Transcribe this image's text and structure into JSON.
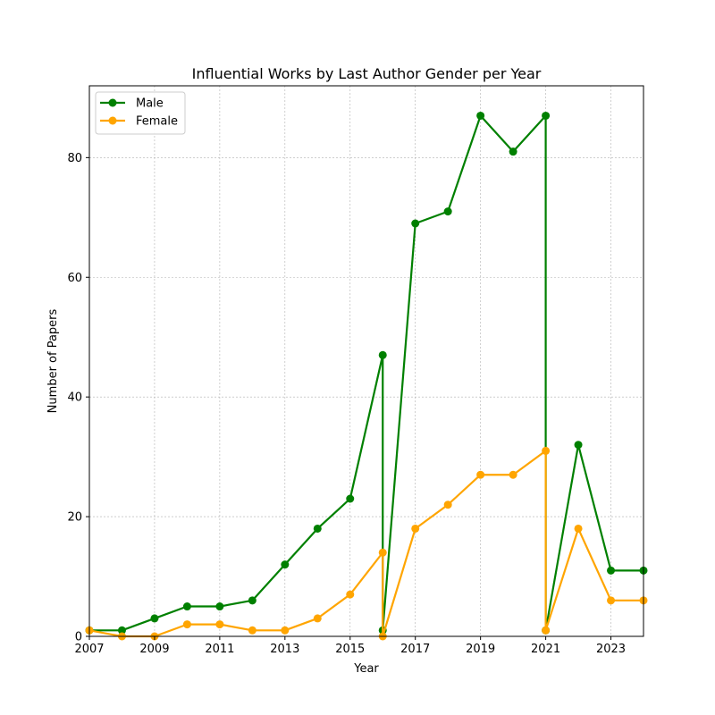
{
  "chart_data": {
    "type": "line",
    "title": "Influential Works by Last Author Gender per Year",
    "xlabel": "Year",
    "ylabel": "Number of Papers",
    "xlim": [
      2007,
      2024
    ],
    "ylim": [
      0,
      92
    ],
    "x_ticks": [
      2007,
      2009,
      2011,
      2013,
      2015,
      2017,
      2019,
      2021,
      2023
    ],
    "y_ticks": [
      0,
      20,
      40,
      60,
      80
    ],
    "grid": true,
    "legend_position": "top-left",
    "series": [
      {
        "name": "Male",
        "color": "#008000",
        "points": [
          [
            2007,
            1
          ],
          [
            2008,
            1
          ],
          [
            2009,
            3
          ],
          [
            2010,
            5
          ],
          [
            2011,
            5
          ],
          [
            2012,
            6
          ],
          [
            2013,
            12
          ],
          [
            2014,
            18
          ],
          [
            2015,
            23
          ],
          [
            2016,
            47
          ],
          [
            2016,
            1
          ],
          [
            2017,
            69
          ],
          [
            2018,
            71
          ],
          [
            2019,
            87
          ],
          [
            2020,
            81
          ],
          [
            2021,
            87
          ],
          [
            2021,
            1
          ],
          [
            2022,
            32
          ],
          [
            2023,
            11
          ],
          [
            2024,
            11
          ]
        ]
      },
      {
        "name": "Female",
        "color": "#FFA500",
        "points": [
          [
            2007,
            1
          ],
          [
            2008,
            0
          ],
          [
            2009,
            0
          ],
          [
            2010,
            2
          ],
          [
            2011,
            2
          ],
          [
            2012,
            1
          ],
          [
            2013,
            1
          ],
          [
            2014,
            3
          ],
          [
            2015,
            7
          ],
          [
            2016,
            14
          ],
          [
            2016,
            0
          ],
          [
            2017,
            18
          ],
          [
            2018,
            22
          ],
          [
            2019,
            27
          ],
          [
            2020,
            27
          ],
          [
            2021,
            31
          ],
          [
            2021,
            1
          ],
          [
            2022,
            18
          ],
          [
            2023,
            6
          ],
          [
            2024,
            6
          ]
        ]
      }
    ]
  }
}
